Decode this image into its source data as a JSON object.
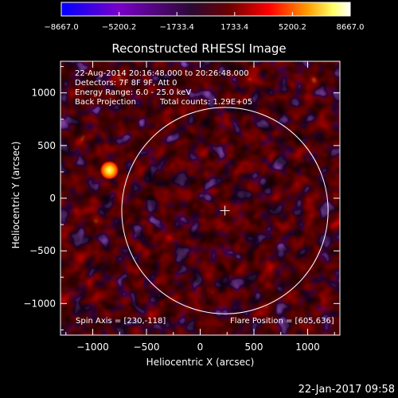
{
  "chart_data": {
    "type": "heatmap",
    "title": "Reconstructed RHESSI Image",
    "xlabel": "Heliocentric X (arcsec)",
    "ylabel": "Heliocentric Y (arcsec)",
    "xlim": [
      -1300,
      1300
    ],
    "ylim": [
      -1300,
      1300
    ],
    "xticks": [
      -1000,
      -500,
      0,
      500,
      1000
    ],
    "xtick_labels": [
      "−1000",
      "−500",
      "0",
      "500",
      "1000"
    ],
    "yticks": [
      -1000,
      -500,
      0,
      500,
      1000
    ],
    "ytick_labels": [
      "−1000",
      "−500",
      "0",
      "500",
      "1000"
    ],
    "colorbar": {
      "range": [
        -8667.0,
        8667.0
      ],
      "ticks": [
        -8667.0,
        -5200.2,
        -1733.4,
        1733.4,
        5200.2,
        8667.0
      ],
      "tick_labels": [
        "−8667.0",
        "−5200.2",
        "−1733.4",
        "1733.4",
        "5200.2",
        "8667.0"
      ],
      "colors": [
        "#0000ff",
        "#7a00c8",
        "#2a0a33",
        "#6a0000",
        "#ff0000",
        "#ff9900",
        "#ffff66",
        "#ffffff"
      ]
    },
    "annotations": {
      "time": "22-Aug-2014 20:16:48.000 to 20:26:48.000",
      "detectors": "Detectors: 7F 8F 9F, Att 0",
      "energy": "Energy Range: 6.0 - 25.0 keV",
      "method": "Back Projection",
      "counts": "Total counts: 1.29E+05",
      "spin_axis": "Spin Axis = [230,-118]",
      "flare_position": "Flare Position = [605,636]"
    },
    "solar_limb_radius": 960,
    "sun_center_marker": [
      230,
      -118
    ],
    "bright_source": [
      -845,
      265
    ]
  },
  "footer": {
    "timestamp": "22-Jan-2017 09:58"
  }
}
